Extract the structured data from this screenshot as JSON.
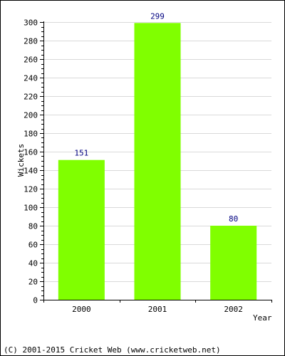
{
  "chart_data": {
    "type": "bar",
    "categories": [
      "2000",
      "2001",
      "2002"
    ],
    "values": [
      151,
      299,
      80
    ],
    "data_labels": [
      "151",
      "299",
      "80"
    ],
    "xlabel": "Year",
    "ylabel": "Wickets",
    "ylim": [
      0,
      300
    ],
    "y_ticks": [
      0,
      20,
      40,
      60,
      80,
      100,
      120,
      140,
      160,
      180,
      200,
      220,
      240,
      260,
      280,
      300
    ],
    "grid": "horizontal",
    "legend": "none",
    "colors": {
      "bar": "#80ff00",
      "data_label": "#000080",
      "grid": "#d9d9d9",
      "axis": "#000000"
    }
  },
  "footer": {
    "copyright": "(C) 2001-2015 Cricket Web (www.cricketweb.net)"
  }
}
